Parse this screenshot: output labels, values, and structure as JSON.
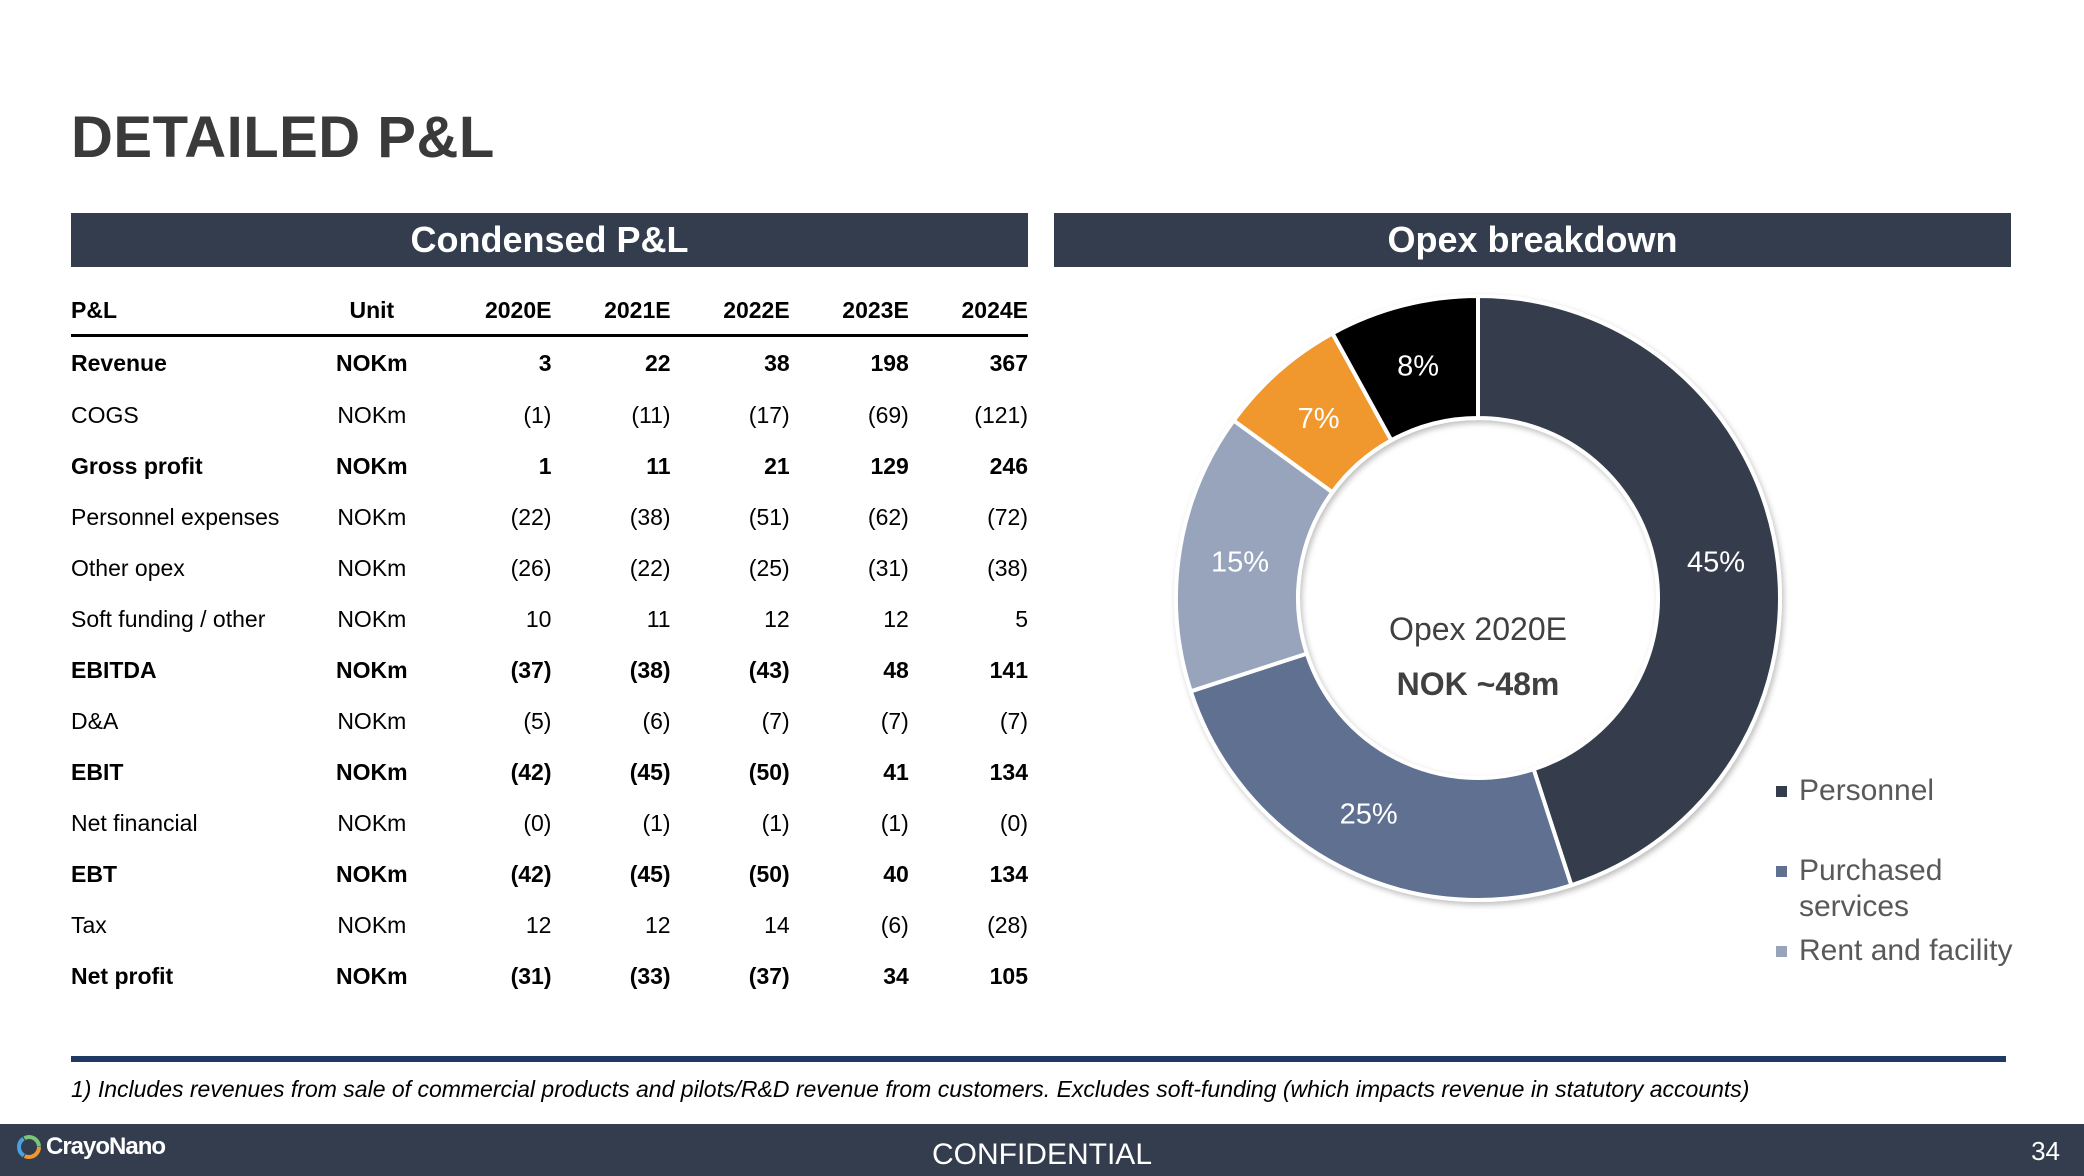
{
  "page": {
    "title": "DETAILED P&L"
  },
  "left_header": "Condensed P&L",
  "right_header": "Opex breakdown",
  "table": {
    "headers": [
      "P&L",
      "Unit",
      "2020E",
      "2021E",
      "2022E",
      "2023E",
      "2024E"
    ],
    "rows": [
      {
        "label": "Revenue",
        "unit": "NOKm",
        "values": [
          "3",
          "22",
          "38",
          "198",
          "367"
        ],
        "bold": true
      },
      {
        "label": "COGS",
        "unit": "NOKm",
        "values": [
          "(1)",
          "(11)",
          "(17)",
          "(69)",
          "(121)"
        ],
        "bold": false
      },
      {
        "label": "Gross profit",
        "unit": "NOKm",
        "values": [
          "1",
          "11",
          "21",
          "129",
          "246"
        ],
        "bold": true
      },
      {
        "label": "Personnel expenses",
        "unit": "NOKm",
        "values": [
          "(22)",
          "(38)",
          "(51)",
          "(62)",
          "(72)"
        ],
        "bold": false
      },
      {
        "label": "Other opex",
        "unit": "NOKm",
        "values": [
          "(26)",
          "(22)",
          "(25)",
          "(31)",
          "(38)"
        ],
        "bold": false
      },
      {
        "label": "Soft funding / other",
        "unit": "NOKm",
        "values": [
          "10",
          "11",
          "12",
          "12",
          "5"
        ],
        "bold": false
      },
      {
        "label": "EBITDA",
        "unit": "NOKm",
        "values": [
          "(37)",
          "(38)",
          "(43)",
          "48",
          "141"
        ],
        "bold": true
      },
      {
        "label": "D&A",
        "unit": "NOKm",
        "values": [
          "(5)",
          "(6)",
          "(7)",
          "(7)",
          "(7)"
        ],
        "bold": false
      },
      {
        "label": "EBIT",
        "unit": "NOKm",
        "values": [
          "(42)",
          "(45)",
          "(50)",
          "41",
          "134"
        ],
        "bold": true
      },
      {
        "label": "Net financial",
        "unit": "NOKm",
        "values": [
          "(0)",
          "(1)",
          "(1)",
          "(1)",
          "(0)"
        ],
        "bold": false
      },
      {
        "label": "EBT",
        "unit": "NOKm",
        "values": [
          "(42)",
          "(45)",
          "(50)",
          "40",
          "134"
        ],
        "bold": true
      },
      {
        "label": "Tax",
        "unit": "NOKm",
        "values": [
          "12",
          "12",
          "14",
          "(6)",
          "(28)"
        ],
        "bold": false
      },
      {
        "label": "Net profit",
        "unit": "NOKm",
        "values": [
          "(31)",
          "(33)",
          "(37)",
          "34",
          "105"
        ],
        "bold": true
      }
    ]
  },
  "chart_data": {
    "type": "pie",
    "donut": true,
    "center_label": "Opex 2020E",
    "center_value": "NOK ~48m",
    "slices": [
      {
        "name": "Personnel",
        "value": 45,
        "label": "45%",
        "color": "#343d4e"
      },
      {
        "name": "Purchased services",
        "value": 25,
        "label": "25%",
        "color": "#5f7091"
      },
      {
        "name": "Rent and facility",
        "value": 15,
        "label": "15%",
        "color": "#97a4bc"
      },
      {
        "name": "",
        "value": 7,
        "label": "7%",
        "color": "#f0972e"
      },
      {
        "name": "",
        "value": 8,
        "label": "8%",
        "color": "#000000"
      }
    ],
    "legend": [
      "Personnel",
      "Purchased services",
      "Rent and facility"
    ],
    "legend_position": "bottom-right"
  },
  "footnote": "1) Includes revenues from sale of commercial products and pilots/R&D revenue from customers. Excludes soft-funding (which impacts revenue in statutory accounts)",
  "footer": {
    "confidential": "CONFIDENTIAL",
    "page_number": "34",
    "logo_text": "CrayoNano",
    "logo_icon": "crayonano-logo-icon"
  }
}
